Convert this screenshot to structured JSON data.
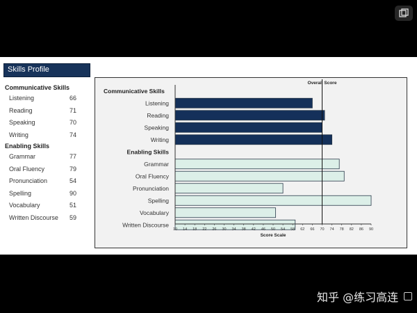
{
  "skills_profile": {
    "title": "Skills Profile",
    "communicative_heading": "Communicative Skills",
    "enabling_heading": "Enabling Skills",
    "communicative": [
      {
        "label": "Listening",
        "score": "66"
      },
      {
        "label": "Reading",
        "score": "71"
      },
      {
        "label": "Speaking",
        "score": "70"
      },
      {
        "label": "Writing",
        "score": "74"
      }
    ],
    "enabling": [
      {
        "label": "Grammar",
        "score": "77"
      },
      {
        "label": "Oral Fluency",
        "score": "79"
      },
      {
        "label": "Pronunciation",
        "score": "54"
      },
      {
        "label": "Spelling",
        "score": "90"
      },
      {
        "label": "Vocabulary",
        "score": "51"
      },
      {
        "label": "Written Discourse",
        "score": "59"
      }
    ]
  },
  "chart_data": {
    "type": "bar",
    "orientation": "horizontal",
    "overall_label": "Overall Score",
    "overall_value": 70,
    "xlabel": "Score Scale",
    "xlim": [
      10,
      90
    ],
    "ticks": [
      10,
      14,
      18,
      22,
      26,
      30,
      34,
      38,
      42,
      46,
      50,
      54,
      58,
      62,
      66,
      70,
      74,
      78,
      82,
      86,
      90
    ],
    "groups": [
      {
        "name": "Communicative Skills",
        "color": "#14305a",
        "categories": [
          "Listening",
          "Reading",
          "Speaking",
          "Writing"
        ],
        "values": [
          66,
          71,
          70,
          74
        ]
      },
      {
        "name": "Enabling Skills",
        "color": "#dcefe8",
        "categories": [
          "Grammar",
          "Oral Fluency",
          "Pronunciation",
          "Spelling",
          "Vocabulary",
          "Written Discourse"
        ],
        "values": [
          77,
          79,
          54,
          90,
          51,
          59
        ]
      }
    ]
  },
  "watermark": "知乎 @练习高连"
}
